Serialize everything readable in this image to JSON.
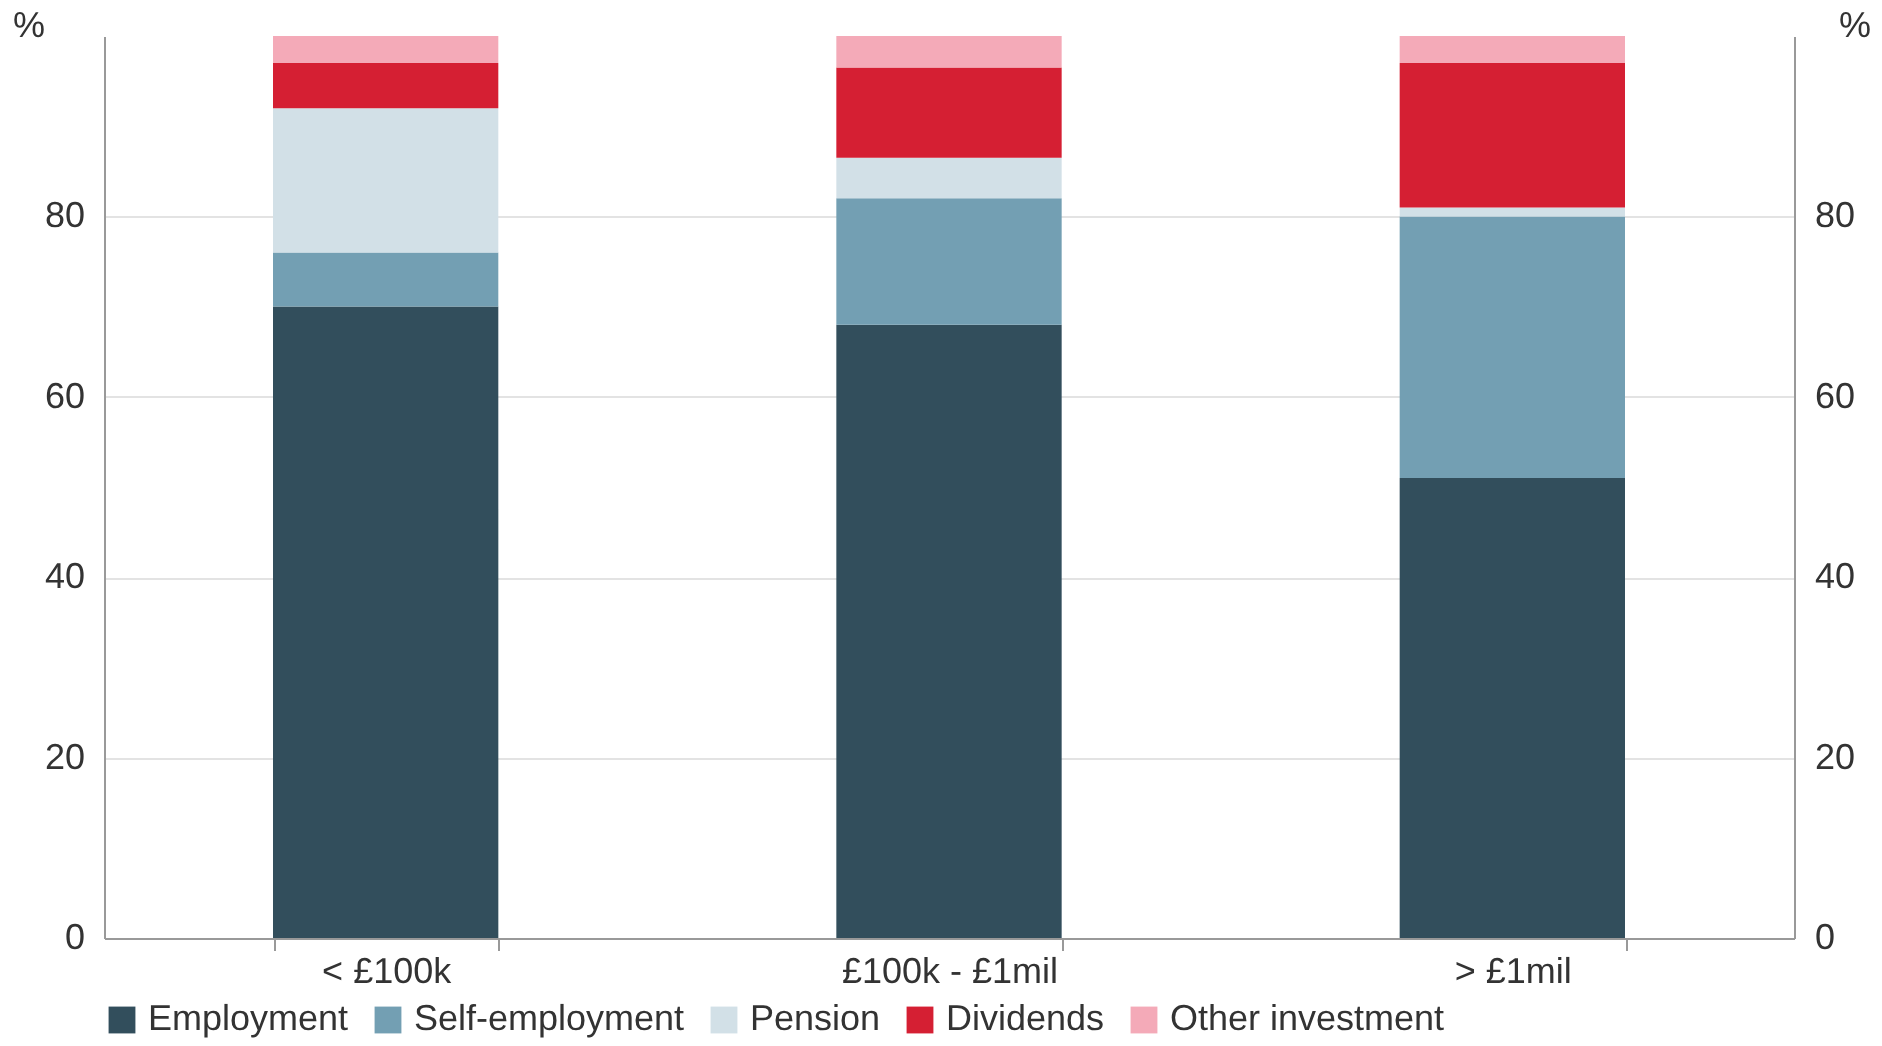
{
  "chart_data": {
    "type": "bar",
    "stacked": true,
    "categories": [
      "< £100k",
      "£100k - £1mil",
      "> £1mil"
    ],
    "series": [
      {
        "name": "Employment",
        "color": "#324e5c",
        "values": [
          70,
          68,
          51
        ]
      },
      {
        "name": "Self-employment",
        "color": "#739fb3",
        "values": [
          6,
          14,
          29
        ]
      },
      {
        "name": "Pension",
        "color": "#d2e0e7",
        "values": [
          16,
          4.5,
          1
        ]
      },
      {
        "name": "Dividends",
        "color": "#d51f33",
        "values": [
          5,
          10,
          16
        ]
      },
      {
        "name": "Other investment",
        "color": "#f4aab8",
        "values": [
          3,
          3.5,
          3
        ]
      }
    ],
    "ylabel": "%",
    "y2label": "%",
    "ylim": [
      0,
      100
    ],
    "yticks": [
      0,
      20,
      40,
      60,
      80
    ],
    "y2lim": [
      0,
      100
    ],
    "y2ticks": [
      0,
      20,
      40,
      60,
      80
    ],
    "grid": "y",
    "legend": "bottom"
  }
}
